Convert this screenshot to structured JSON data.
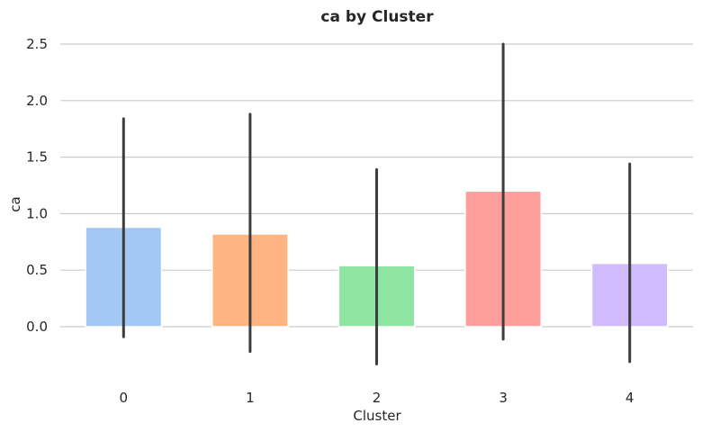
{
  "chart_data": {
    "type": "bar",
    "title": "ca by Cluster",
    "xlabel": "Cluster",
    "ylabel": "ca",
    "categories": [
      "0",
      "1",
      "2",
      "3",
      "4"
    ],
    "values": [
      0.88,
      0.82,
      0.54,
      1.2,
      0.56
    ],
    "error_low": [
      -0.09,
      -0.22,
      -0.33,
      -0.11,
      -0.31
    ],
    "error_high": [
      1.84,
      1.88,
      1.39,
      2.5,
      1.44
    ],
    "ylim": [
      -0.33,
      2.5
    ],
    "yticks": [
      0.0,
      0.5,
      1.0,
      1.5,
      2.0,
      2.5
    ],
    "ytick_labels": [
      "0.0",
      "0.5",
      "1.0",
      "1.5",
      "2.0",
      "2.5"
    ],
    "grid": true,
    "legend": false,
    "colors": [
      "#a1c9f4",
      "#ffb482",
      "#8de5a1",
      "#ff9f9b",
      "#d0bbff"
    ],
    "error_color": "#3d3d3d",
    "grid_color": "#cccccc"
  }
}
